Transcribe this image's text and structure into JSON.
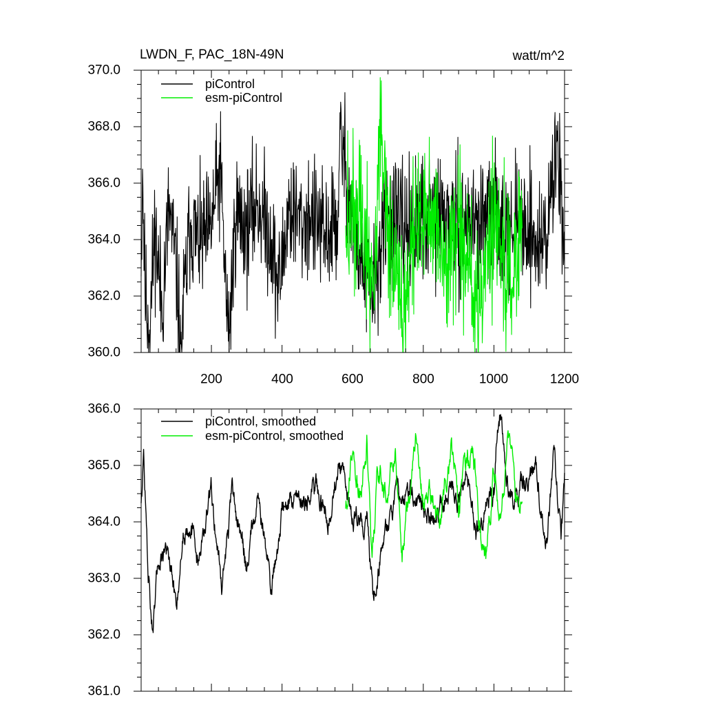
{
  "chart_data": [
    {
      "type": "line",
      "title_left": "LWDN_F, PAC_18N-49N",
      "title_right": "watt/m^2",
      "xlabel": "",
      "ylabel": "",
      "xlim": [
        1,
        1200
      ],
      "ylim": [
        360.0,
        370.0
      ],
      "x_ticks": [
        200,
        400,
        600,
        800,
        1000,
        1200
      ],
      "x_tick_labels": [
        "200",
        "400",
        "600",
        "800",
        "1000",
        "1200"
      ],
      "y_ticks": [
        360.0,
        362.0,
        364.0,
        366.0,
        368.0,
        370.0
      ],
      "y_tick_labels": [
        "360.0",
        "362.0",
        "364.0",
        "366.0",
        "368.0",
        "370.0"
      ],
      "legend": {
        "placement": "top-left",
        "entries": [
          "piControl",
          "esm-piControl"
        ]
      },
      "series": [
        {
          "name": "piControl",
          "color": "#000000",
          "x_range": [
            1,
            1200
          ],
          "points": [
            [
              1,
              362.7
            ],
            [
              5,
              366.5
            ],
            [
              12,
              362.1
            ],
            [
              25,
              360.8
            ],
            [
              40,
              364.4
            ],
            [
              60,
              361.6
            ],
            [
              80,
              365.1
            ],
            [
              100,
              363.0
            ],
            [
              113,
              360.3
            ],
            [
              140,
              364.6
            ],
            [
              165,
              363.8
            ],
            [
              195,
              364.2
            ],
            [
              225,
              366.5
            ],
            [
              248,
              360.4
            ],
            [
              270,
              365.0
            ],
            [
              300,
              364.3
            ],
            [
              330,
              365.4
            ],
            [
              370,
              364.0
            ],
            [
              390,
              362.1
            ],
            [
              420,
              365.2
            ],
            [
              450,
              364.5
            ],
            [
              480,
              364.8
            ],
            [
              505,
              364.4
            ],
            [
              520,
              364.0
            ],
            [
              560,
              364.8
            ],
            [
              565,
              367.9
            ],
            [
              600,
              364.5
            ],
            [
              650,
              362.0
            ],
            [
              700,
              364.8
            ],
            [
              750,
              364.3
            ],
            [
              800,
              364.6
            ],
            [
              850,
              364.9
            ],
            [
              900,
              364.4
            ],
            [
              950,
              364.7
            ],
            [
              1000,
              364.8
            ],
            [
              1050,
              364.5
            ],
            [
              1100,
              364.6
            ],
            [
              1120,
              363.8
            ],
            [
              1150,
              364.2
            ],
            [
              1180,
              367.5
            ],
            [
              1200,
              364.3
            ]
          ],
          "mean": 364.2,
          "noise_amplitude": 1.1
        },
        {
          "name": "esm-piControl",
          "color": "#00ee00",
          "x_range": [
            580,
            1080
          ],
          "points": [
            [
              580,
              364.5
            ],
            [
              620,
              365.0
            ],
            [
              660,
              362.0
            ],
            [
              680,
              368.5
            ],
            [
              700,
              364.2
            ],
            [
              740,
              361.2
            ],
            [
              780,
              364.5
            ],
            [
              820,
              365.0
            ],
            [
              860,
              362.8
            ],
            [
              900,
              364.6
            ],
            [
              940,
              361.9
            ],
            [
              960,
              361.4
            ],
            [
              1000,
              364.9
            ],
            [
              1040,
              362.4
            ],
            [
              1080,
              364.4
            ]
          ],
          "mean": 364.5,
          "noise_amplitude": 1.35
        }
      ]
    },
    {
      "type": "line",
      "xlabel": "",
      "ylabel": "",
      "xlim": [
        1,
        1200
      ],
      "ylim": [
        361.0,
        366.0
      ],
      "x_ticks": [
        200,
        400,
        600,
        800,
        1000,
        1200
      ],
      "y_ticks": [
        361.0,
        362.0,
        363.0,
        364.0,
        365.0,
        366.0
      ],
      "y_tick_labels": [
        "361.0",
        "362.0",
        "363.0",
        "364.0",
        "365.0",
        "366.0"
      ],
      "legend": {
        "placement": "top-left",
        "entries": [
          "piControl, smoothed",
          "esm-piControl, smoothed"
        ]
      },
      "series": [
        {
          "name": "piControl, smoothed",
          "color": "#000000",
          "x_range": [
            1,
            1200
          ],
          "points": [
            [
              1,
              364.4
            ],
            [
              8,
              365.2
            ],
            [
              20,
              363.2
            ],
            [
              35,
              361.9
            ],
            [
              50,
              363.3
            ],
            [
              70,
              363.6
            ],
            [
              100,
              362.5
            ],
            [
              120,
              363.8
            ],
            [
              140,
              364.1
            ],
            [
              160,
              363.3
            ],
            [
              200,
              364.5
            ],
            [
              230,
              362.9
            ],
            [
              260,
              364.5
            ],
            [
              300,
              363.2
            ],
            [
              330,
              364.6
            ],
            [
              370,
              362.8
            ],
            [
              400,
              364.2
            ],
            [
              440,
              364.5
            ],
            [
              480,
              364.4
            ],
            [
              500,
              364.6
            ],
            [
              530,
              364.1
            ],
            [
              560,
              365.0
            ],
            [
              600,
              364.1
            ],
            [
              640,
              364.0
            ],
            [
              660,
              362.5
            ],
            [
              680,
              363.6
            ],
            [
              700,
              364.0
            ],
            [
              740,
              364.6
            ],
            [
              780,
              364.5
            ],
            [
              820,
              364.0
            ],
            [
              860,
              364.5
            ],
            [
              900,
              364.5
            ],
            [
              920,
              364.8
            ],
            [
              950,
              363.8
            ],
            [
              980,
              364.3
            ],
            [
              1000,
              364.6
            ],
            [
              1010,
              365.7
            ],
            [
              1020,
              366.0
            ],
            [
              1040,
              364.6
            ],
            [
              1060,
              364.4
            ],
            [
              1080,
              364.7
            ],
            [
              1100,
              364.6
            ],
            [
              1120,
              365.0
            ],
            [
              1150,
              363.5
            ],
            [
              1170,
              365.3
            ],
            [
              1190,
              363.7
            ],
            [
              1200,
              364.6
            ]
          ],
          "noise_amplitude": 0.28
        },
        {
          "name": "esm-piControl, smoothed",
          "color": "#00ee00",
          "x_range": [
            580,
            1080
          ],
          "points": [
            [
              580,
              364.3
            ],
            [
              595,
              365.2
            ],
            [
              620,
              364.3
            ],
            [
              640,
              365.5
            ],
            [
              655,
              363.2
            ],
            [
              670,
              364.8
            ],
            [
              700,
              364.5
            ],
            [
              720,
              365.2
            ],
            [
              740,
              363.6
            ],
            [
              780,
              365.6
            ],
            [
              800,
              364.4
            ],
            [
              820,
              364.6
            ],
            [
              840,
              363.9
            ],
            [
              870,
              364.9
            ],
            [
              880,
              365.5
            ],
            [
              900,
              364.2
            ],
            [
              940,
              365.4
            ],
            [
              960,
              364.1
            ],
            [
              980,
              363.3
            ],
            [
              1000,
              364.8
            ],
            [
              1020,
              364.0
            ],
            [
              1040,
              365.8
            ],
            [
              1060,
              364.3
            ],
            [
              1080,
              364.5
            ]
          ],
          "noise_amplitude": 0.32
        }
      ]
    }
  ]
}
